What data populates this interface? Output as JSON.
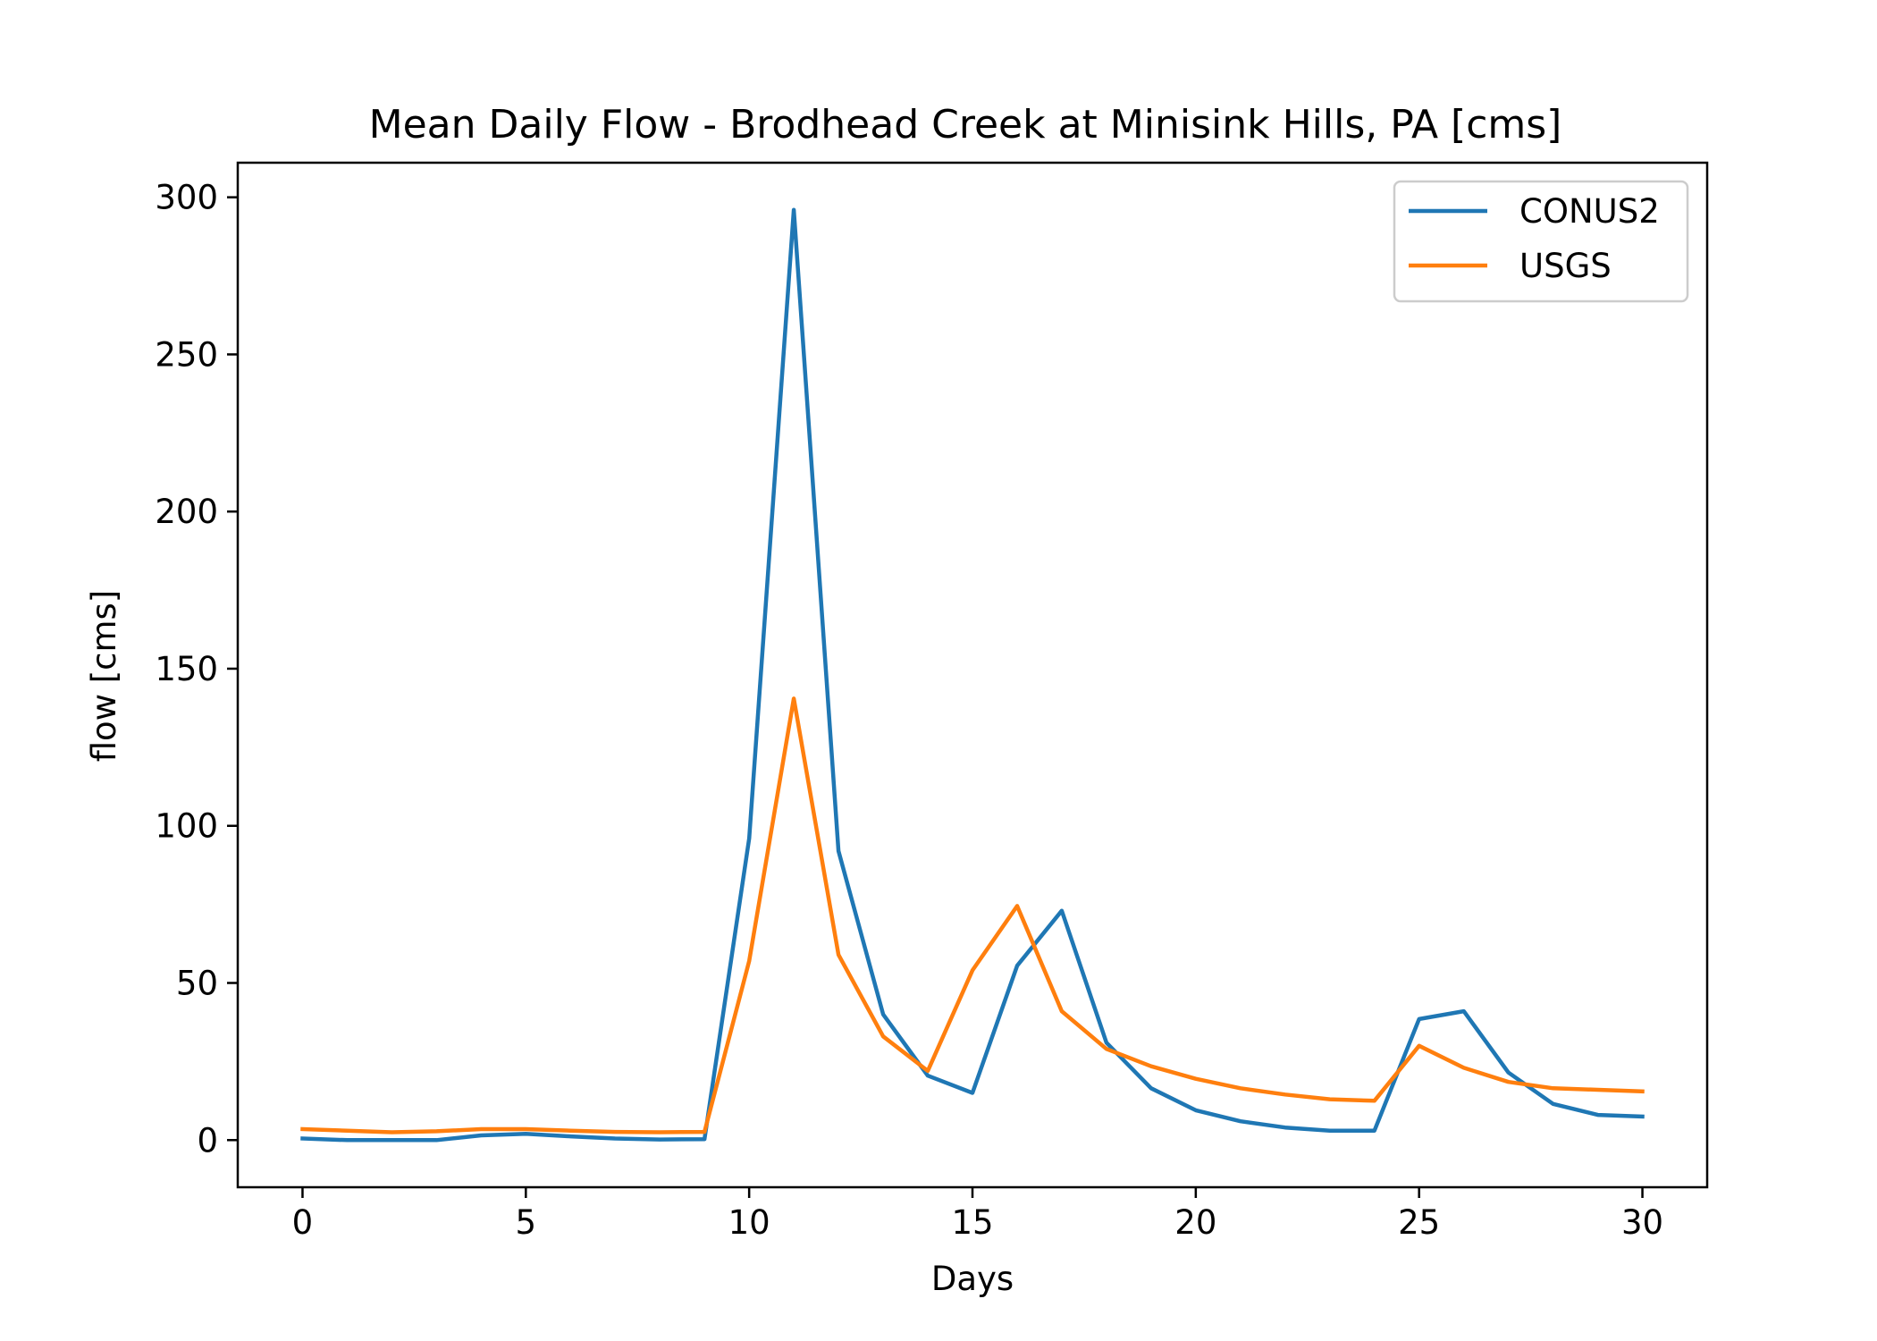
{
  "chart_data": {
    "type": "line",
    "title": "Mean Daily Flow - Brodhead Creek at Minisink Hills, PA [cms]",
    "xlabel": "Days",
    "ylabel": "flow [cms]",
    "xlim": [
      -1.45,
      31.45
    ],
    "ylim": [
      -15,
      311
    ],
    "xticks": [
      0,
      5,
      10,
      15,
      20,
      25,
      30
    ],
    "yticks": [
      0,
      50,
      100,
      150,
      200,
      250,
      300
    ],
    "grid": false,
    "legend_position": "top-right",
    "x": [
      0,
      1,
      2,
      3,
      4,
      5,
      6,
      7,
      8,
      9,
      10,
      11,
      12,
      13,
      14,
      15,
      16,
      17,
      18,
      19,
      20,
      21,
      22,
      23,
      24,
      25,
      26,
      27,
      28,
      29,
      30
    ],
    "series": [
      {
        "name": "CONUS2",
        "color": "#1f77b4",
        "values": [
          0.5,
          0,
          0,
          0,
          1.5,
          2,
          1.2,
          0.5,
          0.2,
          0.3,
          96,
          296,
          92,
          40,
          20.5,
          15,
          55.5,
          73,
          31,
          16.5,
          9.5,
          6,
          4,
          3,
          3,
          38.5,
          41,
          21.5,
          11.5,
          8,
          7.5
        ]
      },
      {
        "name": "USGS",
        "color": "#ff7f0e",
        "values": [
          3.5,
          3,
          2.5,
          2.8,
          3.5,
          3.5,
          3,
          2.6,
          2.5,
          2.6,
          57,
          140.5,
          59,
          33,
          22,
          54,
          74.5,
          41,
          29,
          23.5,
          19.5,
          16.5,
          14.5,
          13,
          12.5,
          30,
          23,
          18.5,
          16.5,
          16,
          15.5
        ]
      }
    ]
  }
}
